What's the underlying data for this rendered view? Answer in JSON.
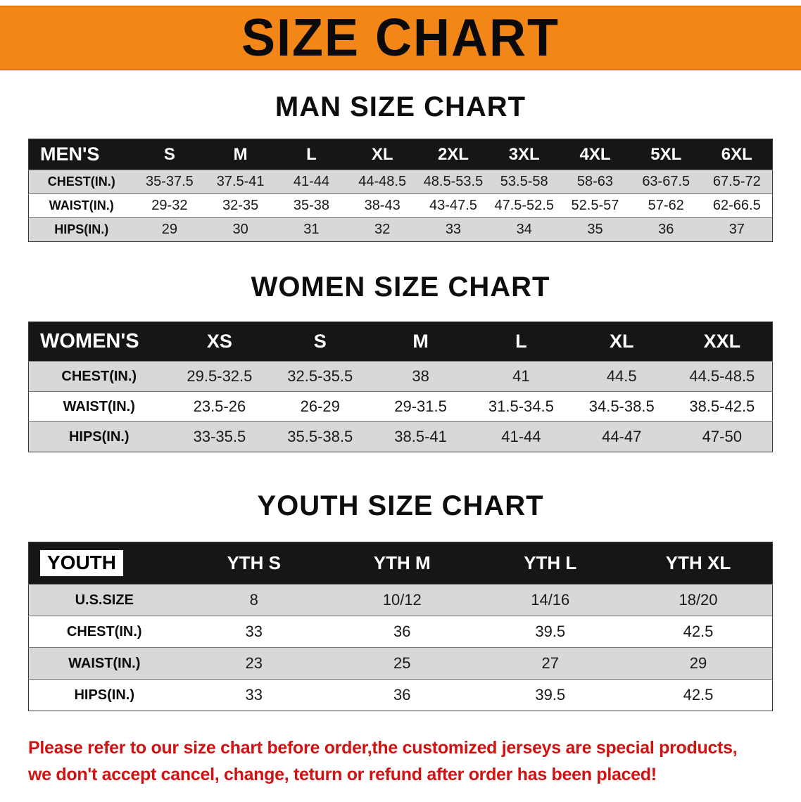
{
  "banner": {
    "title": "SIZE CHART",
    "background_color": "#f28718"
  },
  "sections": [
    {
      "id": "men",
      "heading": "MAN SIZE CHART",
      "header_label": "MEN'S",
      "header_boxed": false,
      "columns": [
        "S",
        "M",
        "L",
        "XL",
        "2XL",
        "3XL",
        "4XL",
        "5XL",
        "6XL"
      ],
      "rows": [
        {
          "label": "CHEST(IN.)",
          "values": [
            "35-37.5",
            "37.5-41",
            "41-44",
            "44-48.5",
            "48.5-53.5",
            "53.5-58",
            "58-63",
            "63-67.5",
            "67.5-72"
          ]
        },
        {
          "label": "WAIST(IN.)",
          "values": [
            "29-32",
            "32-35",
            "35-38",
            "38-43",
            "43-47.5",
            "47.5-52.5",
            "52.5-57",
            "57-62",
            "62-66.5"
          ]
        },
        {
          "label": "HIPS(IN.)",
          "values": [
            "29",
            "30",
            "31",
            "32",
            "33",
            "34",
            "35",
            "36",
            "37"
          ]
        }
      ]
    },
    {
      "id": "women",
      "heading": "WOMEN SIZE CHART",
      "header_label": "WOMEN'S",
      "header_boxed": false,
      "columns": [
        "XS",
        "S",
        "M",
        "L",
        "XL",
        "XXL"
      ],
      "rows": [
        {
          "label": "CHEST(IN.)",
          "values": [
            "29.5-32.5",
            "32.5-35.5",
            "38",
            "41",
            "44.5",
            "44.5-48.5"
          ]
        },
        {
          "label": "WAIST(IN.)",
          "values": [
            "23.5-26",
            "26-29",
            "29-31.5",
            "31.5-34.5",
            "34.5-38.5",
            "38.5-42.5"
          ]
        },
        {
          "label": "HIPS(IN.)",
          "values": [
            "33-35.5",
            "35.5-38.5",
            "38.5-41",
            "41-44",
            "44-47",
            "47-50"
          ]
        }
      ]
    },
    {
      "id": "youth",
      "heading": "YOUTH SIZE CHART",
      "header_label": "YOUTH",
      "header_boxed": true,
      "columns": [
        "YTH S",
        "YTH M",
        "YTH L",
        "YTH XL"
      ],
      "rows": [
        {
          "label": "U.S.SIZE",
          "values": [
            "8",
            "10/12",
            "14/16",
            "18/20"
          ]
        },
        {
          "label": "CHEST(IN.)",
          "values": [
            "33",
            "36",
            "39.5",
            "42.5"
          ]
        },
        {
          "label": "WAIST(IN.)",
          "values": [
            "23",
            "25",
            "27",
            "29"
          ]
        },
        {
          "label": "HIPS(IN.)",
          "values": [
            "33",
            "36",
            "39.5",
            "42.5"
          ]
        }
      ]
    }
  ],
  "footer": {
    "line1": "Please refer to our size chart before order,the customized jerseys are special products,",
    "line2": "we don't accept cancel, change, teturn or refund after order has been placed!",
    "text_color": "#cf1212"
  }
}
